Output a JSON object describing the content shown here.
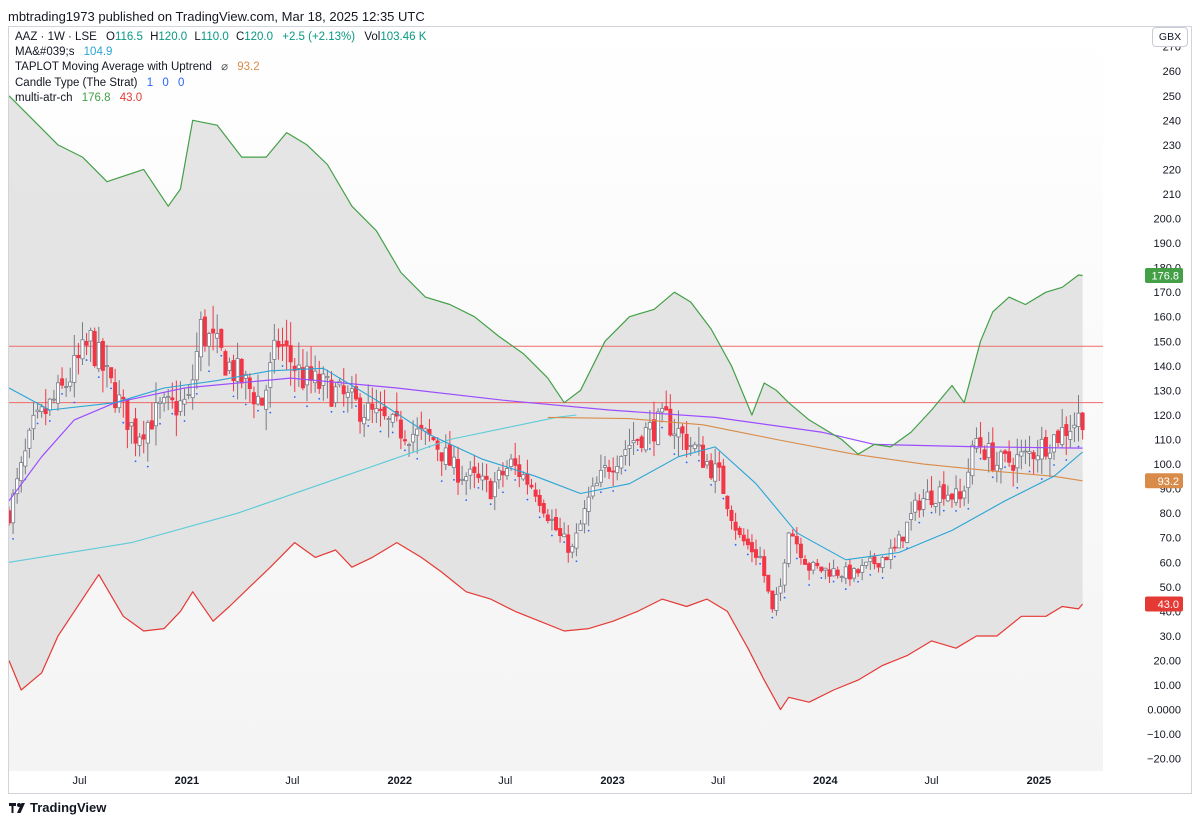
{
  "header": {
    "publisher_text": "mbtrading1973 published on TradingView.com, Mar 18, 2025 12:35 UTC"
  },
  "legend": {
    "symbol": "AAZ · 1W · LSE",
    "open_label": "O",
    "open": "116.5",
    "high_label": "H",
    "high": "120.0",
    "low_label": "L",
    "low": "110.0",
    "close_label": "C",
    "close": "120.0",
    "change": "+2.5 (+2.13%)",
    "vol_label": "Vol",
    "volume": "103.46 K",
    "ma_name": "MA&#039;s",
    "ma_value": "104.9",
    "taplot_name": "TAPLOT Moving Average with Uptrend",
    "taplot_symbol": "⌀",
    "taplot_value": "93.2",
    "strat_name": "Candle Type (The Strat)",
    "strat_v1": "1",
    "strat_v2": "0",
    "strat_v3": "0",
    "atr_name": "multi-atr-ch",
    "atr_upper": "176.8",
    "atr_lower": "43.0"
  },
  "currency_button": "GBX",
  "footer": {
    "brand": "TradingView"
  },
  "colors": {
    "up": "#ffffff",
    "down": "#f23645",
    "candle_outline": "#787b86",
    "atr_upper": "#43a047",
    "atr_lower": "#e53935",
    "channel_fill": "#dcdcdc",
    "ma_purple": "#9c4dff",
    "ma_cyan": "#2aa4d6",
    "ma_cyan_long": "#5ccbd8",
    "taplot_orange": "#d98c4a",
    "hline": "#f06a6a",
    "strat_blue": "#2962ff"
  },
  "chart_data": {
    "type": "candlestick",
    "ylim": [
      -25,
      278
    ],
    "y_ticks": [
      270,
      260,
      250,
      240,
      230,
      220,
      210,
      200,
      190,
      180,
      170,
      160,
      150,
      140,
      130,
      120,
      110,
      100,
      90,
      80,
      70,
      60,
      50,
      40,
      30,
      20,
      10,
      0,
      -10,
      -20
    ],
    "y_tick_labels": [
      "270",
      "260",
      "250",
      "240",
      "230",
      "220",
      "210",
      "200.0",
      "190.0",
      "180.0",
      "170.0",
      "160.0",
      "150.0",
      "140.0",
      "130.0",
      "120.0",
      "110.0",
      "100.0",
      "90.0",
      "80.0",
      "70.0",
      "60.0",
      "50.0",
      "40.0",
      "30.0",
      "20.00",
      "10.00",
      "0.0000",
      "−10.00",
      "−20.00"
    ],
    "x_start": "2020-03-02",
    "x_end": "2025-04-21",
    "x_ticks": [
      {
        "date": "2020-07-01",
        "label": "Jul",
        "bold": false
      },
      {
        "date": "2021-01-01",
        "label": "2021",
        "bold": true
      },
      {
        "date": "2021-07-01",
        "label": "Jul",
        "bold": false
      },
      {
        "date": "2022-01-01",
        "label": "2022",
        "bold": true
      },
      {
        "date": "2022-07-01",
        "label": "Jul",
        "bold": false
      },
      {
        "date": "2023-01-01",
        "label": "2023",
        "bold": true
      },
      {
        "date": "2023-07-01",
        "label": "Jul",
        "bold": false
      },
      {
        "date": "2024-01-01",
        "label": "2024",
        "bold": true
      },
      {
        "date": "2024-07-01",
        "label": "Jul",
        "bold": false
      },
      {
        "date": "2025-01-01",
        "label": "2025",
        "bold": true
      }
    ],
    "horizontal_lines": [
      148,
      125
    ],
    "close_anchors": [
      [
        "2020-03-02",
        80
      ],
      [
        "2020-04-13",
        115
      ],
      [
        "2020-06-01",
        130
      ],
      [
        "2020-07-20",
        150
      ],
      [
        "2020-08-17",
        135
      ],
      [
        "2020-10-05",
        112
      ],
      [
        "2020-11-16",
        122
      ],
      [
        "2021-01-04",
        125
      ],
      [
        "2021-01-25",
        155
      ],
      [
        "2021-03-15",
        140
      ],
      [
        "2021-05-10",
        125
      ],
      [
        "2021-06-07",
        150
      ],
      [
        "2021-07-19",
        135
      ],
      [
        "2021-09-06",
        130
      ],
      [
        "2021-11-01",
        122
      ],
      [
        "2021-12-20",
        115
      ],
      [
        "2022-02-28",
        110
      ],
      [
        "2022-04-04",
        98
      ],
      [
        "2022-06-06",
        90
      ],
      [
        "2022-07-11",
        100
      ],
      [
        "2022-08-22",
        90
      ],
      [
        "2022-10-03",
        70
      ],
      [
        "2022-10-24",
        65
      ],
      [
        "2022-11-21",
        85
      ],
      [
        "2022-12-26",
        100
      ],
      [
        "2023-02-06",
        110
      ],
      [
        "2023-04-03",
        118
      ],
      [
        "2023-05-15",
        108
      ],
      [
        "2023-07-03",
        95
      ],
      [
        "2023-08-07",
        70
      ],
      [
        "2023-09-11",
        62
      ],
      [
        "2023-10-02",
        40
      ],
      [
        "2023-10-16",
        50
      ],
      [
        "2023-10-30",
        75
      ],
      [
        "2023-12-04",
        58
      ],
      [
        "2024-02-19",
        55
      ],
      [
        "2024-04-29",
        65
      ],
      [
        "2024-06-10",
        85
      ],
      [
        "2024-07-22",
        90
      ],
      [
        "2024-08-19",
        85
      ],
      [
        "2024-09-16",
        110
      ],
      [
        "2024-10-21",
        100
      ],
      [
        "2024-12-09",
        103
      ],
      [
        "2025-02-03",
        112
      ],
      [
        "2025-03-17",
        120
      ]
    ],
    "series": [
      {
        "name": "multi-atr-ch",
        "key": "atr_upper",
        "points": [
          [
            "2020-03-02",
            250
          ],
          [
            "2020-04-13",
            240
          ],
          [
            "2020-05-25",
            230
          ],
          [
            "2020-07-06",
            225
          ],
          [
            "2020-08-17",
            215
          ],
          [
            "2020-10-19",
            220
          ],
          [
            "2020-11-30",
            205
          ],
          [
            "2020-12-21",
            212
          ],
          [
            "2021-01-11",
            240
          ],
          [
            "2021-02-22",
            238
          ],
          [
            "2021-04-05",
            225
          ],
          [
            "2021-05-17",
            225
          ],
          [
            "2021-06-21",
            235
          ],
          [
            "2021-07-26",
            230
          ],
          [
            "2021-08-30",
            222
          ],
          [
            "2021-10-11",
            205
          ],
          [
            "2021-11-22",
            195
          ],
          [
            "2022-01-03",
            178
          ],
          [
            "2022-02-14",
            168
          ],
          [
            "2022-03-28",
            165
          ],
          [
            "2022-05-09",
            160
          ],
          [
            "2022-06-20",
            152
          ],
          [
            "2022-08-01",
            145
          ],
          [
            "2022-09-12",
            135
          ],
          [
            "2022-10-10",
            125
          ],
          [
            "2022-11-07",
            130
          ],
          [
            "2022-12-19",
            150
          ],
          [
            "2023-01-30",
            160
          ],
          [
            "2023-03-13",
            163
          ],
          [
            "2023-04-17",
            170
          ],
          [
            "2023-05-15",
            166
          ],
          [
            "2023-06-19",
            155
          ],
          [
            "2023-07-24",
            140
          ],
          [
            "2023-08-28",
            120
          ],
          [
            "2023-09-18",
            133
          ],
          [
            "2023-10-09",
            130
          ],
          [
            "2023-10-30",
            125
          ],
          [
            "2023-12-04",
            118
          ],
          [
            "2024-01-29",
            110
          ],
          [
            "2024-02-26",
            104
          ],
          [
            "2024-03-25",
            108
          ],
          [
            "2024-04-22",
            107
          ],
          [
            "2024-05-27",
            113
          ],
          [
            "2024-07-01",
            122
          ],
          [
            "2024-08-05",
            132
          ],
          [
            "2024-08-26",
            125
          ],
          [
            "2024-09-23",
            150
          ],
          [
            "2024-10-14",
            162
          ],
          [
            "2024-11-11",
            168
          ],
          [
            "2024-12-09",
            165
          ],
          [
            "2025-01-13",
            170
          ],
          [
            "2025-02-10",
            172
          ],
          [
            "2025-03-10",
            177
          ],
          [
            "2025-03-17",
            176.8
          ]
        ]
      },
      {
        "name": "multi-atr-ch",
        "key": "atr_lower",
        "points": [
          [
            "2020-03-02",
            20
          ],
          [
            "2020-03-23",
            8
          ],
          [
            "2020-04-27",
            15
          ],
          [
            "2020-05-25",
            30
          ],
          [
            "2020-07-06",
            45
          ],
          [
            "2020-08-03",
            55
          ],
          [
            "2020-09-14",
            38
          ],
          [
            "2020-10-19",
            32
          ],
          [
            "2020-11-23",
            33
          ],
          [
            "2020-12-21",
            40
          ],
          [
            "2021-01-11",
            48
          ],
          [
            "2021-02-15",
            36
          ],
          [
            "2021-03-15",
            42
          ],
          [
            "2021-04-19",
            50
          ],
          [
            "2021-05-24",
            58
          ],
          [
            "2021-07-05",
            68
          ],
          [
            "2021-08-09",
            62
          ],
          [
            "2021-09-13",
            65
          ],
          [
            "2021-10-11",
            58
          ],
          [
            "2021-11-15",
            62
          ],
          [
            "2021-12-27",
            68
          ],
          [
            "2022-02-07",
            62
          ],
          [
            "2022-03-14",
            56
          ],
          [
            "2022-04-25",
            48
          ],
          [
            "2022-06-06",
            45
          ],
          [
            "2022-07-18",
            40
          ],
          [
            "2022-08-29",
            36
          ],
          [
            "2022-10-10",
            32
          ],
          [
            "2022-11-21",
            33
          ],
          [
            "2023-01-02",
            36
          ],
          [
            "2023-02-13",
            40
          ],
          [
            "2023-03-27",
            45
          ],
          [
            "2023-05-08",
            42
          ],
          [
            "2023-06-12",
            45
          ],
          [
            "2023-07-17",
            40
          ],
          [
            "2023-08-21",
            25
          ],
          [
            "2023-09-18",
            12
          ],
          [
            "2023-10-16",
            0
          ],
          [
            "2023-10-30",
            5
          ],
          [
            "2023-12-04",
            3
          ],
          [
            "2024-01-15",
            8
          ],
          [
            "2024-02-26",
            12
          ],
          [
            "2024-04-08",
            18
          ],
          [
            "2024-05-20",
            22
          ],
          [
            "2024-07-01",
            28
          ],
          [
            "2024-08-12",
            25
          ],
          [
            "2024-09-16",
            30
          ],
          [
            "2024-10-21",
            30
          ],
          [
            "2024-12-02",
            38
          ],
          [
            "2025-01-13",
            38
          ],
          [
            "2025-02-10",
            42
          ],
          [
            "2025-03-10",
            41
          ],
          [
            "2025-03-17",
            43.0
          ]
        ]
      },
      {
        "name": "TAPLOT Moving Average with Uptrend",
        "key": "taplot",
        "points": [
          [
            "2022-09-12",
            119
          ],
          [
            "2023-01-30",
            118.5
          ],
          [
            "2023-06-05",
            116
          ],
          [
            "2023-10-09",
            110
          ],
          [
            "2024-02-19",
            104
          ],
          [
            "2024-06-17",
            100
          ],
          [
            "2024-10-21",
            97
          ],
          [
            "2025-01-27",
            95
          ],
          [
            "2025-03-17",
            93.2
          ]
        ]
      },
      {
        "name": "MA&#039;s",
        "key": "ma_purple",
        "points": [
          [
            "2020-03-02",
            85
          ],
          [
            "2020-04-27",
            103
          ],
          [
            "2020-06-22",
            118
          ],
          [
            "2020-08-31",
            125
          ],
          [
            "2020-12-28",
            131
          ],
          [
            "2021-06-28",
            135
          ],
          [
            "2021-12-27",
            131
          ],
          [
            "2022-06-27",
            126
          ],
          [
            "2022-12-26",
            122
          ],
          [
            "2023-06-26",
            119
          ],
          [
            "2023-12-25",
            113
          ],
          [
            "2024-03-25",
            108
          ],
          [
            "2024-09-23",
            107
          ],
          [
            "2025-03-17",
            106.5
          ]
        ]
      },
      {
        "name": "MA&#039;s",
        "key": "ma_cyan",
        "points": [
          [
            "2020-03-02",
            131
          ],
          [
            "2020-05-11",
            122
          ],
          [
            "2020-08-31",
            125
          ],
          [
            "2020-11-23",
            131
          ],
          [
            "2021-02-22",
            134
          ],
          [
            "2021-05-24",
            138
          ],
          [
            "2021-08-23",
            139
          ],
          [
            "2021-11-22",
            126
          ],
          [
            "2022-02-21",
            112
          ],
          [
            "2022-05-23",
            102
          ],
          [
            "2022-08-22",
            95
          ],
          [
            "2022-11-07",
            88
          ],
          [
            "2023-01-30",
            92
          ],
          [
            "2023-04-24",
            103
          ],
          [
            "2023-06-26",
            107
          ],
          [
            "2023-09-04",
            92
          ],
          [
            "2023-11-13",
            72
          ],
          [
            "2024-02-05",
            61
          ],
          [
            "2024-05-06",
            64
          ],
          [
            "2024-08-05",
            73
          ],
          [
            "2024-11-04",
            85
          ],
          [
            "2025-01-27",
            95
          ],
          [
            "2025-03-17",
            104.9
          ]
        ]
      },
      {
        "name": "MA&#039;s",
        "key": "ma_cyan_long",
        "points": [
          [
            "2020-03-02",
            60
          ],
          [
            "2020-09-28",
            68
          ],
          [
            "2021-03-29",
            80
          ],
          [
            "2021-09-27",
            95
          ],
          [
            "2022-03-28",
            110
          ],
          [
            "2022-09-26",
            119
          ],
          [
            "2022-10-31",
            120
          ]
        ]
      }
    ],
    "price_tags": [
      {
        "value": 176.8,
        "label": "176.8",
        "color": "#43a047"
      },
      {
        "value": 93.2,
        "label": "93.2",
        "color": "#d98c4a"
      },
      {
        "value": 43.0,
        "label": "43.0",
        "color": "#e53935"
      }
    ]
  }
}
